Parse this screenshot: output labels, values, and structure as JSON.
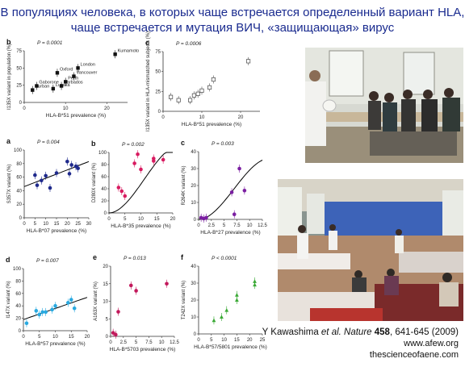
{
  "title_lines": [
    "В популяциях человека, в которых чаще встречается определенный вариант HLA,",
    "чаще встречается и мутация ВИЧ, «защищающая» вирус"
  ],
  "citation": {
    "author": "Y Kawashima ",
    "journal": "et al. Nature",
    "volume": " 458",
    "pages": ", 641-645 (2009)",
    "site1": "www.afew.org",
    "site2": "thescienceofaene.com"
  },
  "colors": {
    "title": "#1a2b8f",
    "a": "#1f2a8c",
    "b": "#d81b60",
    "c": "#7b1fa2",
    "d": "#29a9e0",
    "e": "#c2185b",
    "f": "#3aa935",
    "fit": "#000000"
  },
  "chart_data": [
    {
      "panel": "b",
      "type": "scatter",
      "ptext": "P = 0.0001",
      "xlabel": "HLA-B*51 prevalence (%)",
      "ylabel": "I135X variant in population (%)",
      "xlim": [
        0,
        25
      ],
      "ylim": [
        0,
        75
      ],
      "xticks": [
        0,
        10,
        20
      ],
      "yticks": [
        0,
        25,
        50,
        75
      ],
      "marker": "square-filled",
      "points": [
        {
          "x": 2,
          "y": 18,
          "label": "Durban"
        },
        {
          "x": 3,
          "y": 24,
          "label": "Gaborone"
        },
        {
          "x": 7,
          "y": 20,
          "label": "Lusaka"
        },
        {
          "x": 8,
          "y": 43,
          "label": "Oxford"
        },
        {
          "x": 9,
          "y": 24,
          "label": "Barbados"
        },
        {
          "x": 10,
          "y": 30,
          "label": "Perth"
        },
        {
          "x": 12,
          "y": 38,
          "label": "Vancouver"
        },
        {
          "x": 13,
          "y": 50,
          "label": "London"
        },
        {
          "x": 22,
          "y": 70,
          "label": "Kumamoto"
        }
      ]
    },
    {
      "panel": "c",
      "type": "scatter",
      "ptext": "P = 0.0006",
      "xlabel": "HLA-B*51 prevalence (%)",
      "ylabel": "I135X variant in HLA-mismatched subjects (%)",
      "xlim": [
        0,
        25
      ],
      "ylim": [
        0,
        75
      ],
      "xticks": [
        0,
        10,
        20
      ],
      "yticks": [
        0,
        25,
        50,
        75
      ],
      "marker": "square-open",
      "points": [
        {
          "x": 2,
          "y": 18
        },
        {
          "x": 4,
          "y": 14
        },
        {
          "x": 7,
          "y": 14
        },
        {
          "x": 8,
          "y": 20
        },
        {
          "x": 9,
          "y": 22
        },
        {
          "x": 10,
          "y": 26
        },
        {
          "x": 12,
          "y": 30
        },
        {
          "x": 13,
          "y": 40
        },
        {
          "x": 22,
          "y": 63
        }
      ]
    },
    {
      "panel": "a",
      "type": "scatter",
      "ptext": "P = 0.004",
      "xlabel": "HLA-B*07 prevalence (%)",
      "ylabel": "S357X variant (%)",
      "xlim": [
        0,
        30
      ],
      "ylim": [
        0,
        100
      ],
      "xticks": [
        0,
        5,
        10,
        15,
        20,
        25,
        30
      ],
      "yticks": [
        0,
        20,
        40,
        60,
        80,
        100
      ],
      "fit": "line",
      "points": [
        {
          "x": 5,
          "y": 63
        },
        {
          "x": 6,
          "y": 48
        },
        {
          "x": 8,
          "y": 55
        },
        {
          "x": 10,
          "y": 62
        },
        {
          "x": 12,
          "y": 44
        },
        {
          "x": 15,
          "y": 66
        },
        {
          "x": 20,
          "y": 83
        },
        {
          "x": 21,
          "y": 65
        },
        {
          "x": 22,
          "y": 78
        },
        {
          "x": 24,
          "y": 76
        },
        {
          "x": 25,
          "y": 73
        }
      ]
    },
    {
      "panel": "b",
      "type": "scatter",
      "ptext": "P = 0.002",
      "xlabel": "HLA-B*35 prevalence (%)",
      "ylabel": "D280X variant (%)",
      "xlim": [
        0,
        20
      ],
      "ylim": [
        0,
        100
      ],
      "xticks": [
        0,
        5,
        10,
        15,
        20
      ],
      "yticks": [
        0,
        20,
        40,
        60,
        80,
        100
      ],
      "fit": "curve",
      "points": [
        {
          "x": 3,
          "y": 42
        },
        {
          "x": 4,
          "y": 36
        },
        {
          "x": 5,
          "y": 28
        },
        {
          "x": 8,
          "y": 82
        },
        {
          "x": 9,
          "y": 97
        },
        {
          "x": 10,
          "y": 72
        },
        {
          "x": 14,
          "y": 90
        },
        {
          "x": 14,
          "y": 86
        },
        {
          "x": 17,
          "y": 88
        }
      ]
    },
    {
      "panel": "c",
      "type": "scatter",
      "ptext": "P = 0.003",
      "xlabel": "HLA-B*27 prevalence (%)",
      "ylabel": "R264K variant (%)",
      "xlim": [
        0,
        12.5
      ],
      "ylim": [
        0,
        40
      ],
      "xticks": [
        0,
        2.5,
        5,
        7.5,
        10,
        12.5
      ],
      "yticks": [
        0,
        10,
        20,
        30,
        40
      ],
      "fit": "curve",
      "points": [
        {
          "x": 0.5,
          "y": 1
        },
        {
          "x": 1,
          "y": 0.5
        },
        {
          "x": 1.5,
          "y": 1
        },
        {
          "x": 6.5,
          "y": 16
        },
        {
          "x": 7,
          "y": 3
        },
        {
          "x": 8,
          "y": 30
        },
        {
          "x": 9,
          "y": 17
        }
      ]
    },
    {
      "panel": "d",
      "type": "scatter",
      "ptext": "P = 0.007",
      "xlabel": "HLA-B*57 prevalence (%)",
      "ylabel": "I147X variant (%)",
      "xlim": [
        0,
        20
      ],
      "ylim": [
        0,
        100
      ],
      "xticks": [
        0,
        5,
        10,
        15,
        20
      ],
      "yticks": [
        0,
        20,
        40,
        60,
        80,
        100
      ],
      "fit": "line",
      "points": [
        {
          "x": 1,
          "y": 12
        },
        {
          "x": 4,
          "y": 32
        },
        {
          "x": 5,
          "y": 26
        },
        {
          "x": 6,
          "y": 30
        },
        {
          "x": 7,
          "y": 30
        },
        {
          "x": 9,
          "y": 34
        },
        {
          "x": 10,
          "y": 40
        },
        {
          "x": 14,
          "y": 45
        },
        {
          "x": 15,
          "y": 50
        },
        {
          "x": 16,
          "y": 36
        }
      ]
    },
    {
      "panel": "e",
      "type": "scatter",
      "ptext": "P = 0.013",
      "xlabel": "HLA-B*5703 prevalence (%)",
      "ylabel": "A163X variant (%)",
      "xlim": [
        0,
        12.5
      ],
      "ylim": [
        0,
        20
      ],
      "xticks": [
        0,
        2.5,
        5,
        7.5,
        10,
        12.5
      ],
      "yticks": [
        0,
        5,
        10,
        15,
        20
      ],
      "points": [
        {
          "x": 0.5,
          "y": 1
        },
        {
          "x": 1,
          "y": 0.5
        },
        {
          "x": 1.5,
          "y": 7
        },
        {
          "x": 4,
          "y": 14.5
        },
        {
          "x": 5,
          "y": 13
        },
        {
          "x": 11,
          "y": 15
        }
      ]
    },
    {
      "panel": "f",
      "type": "scatter",
      "ptext": "P < 0.0001",
      "xlabel": "HLA-B*57/5801 prevalence (%)",
      "ylabel": "T242X variant (%)",
      "xlim": [
        0,
        25
      ],
      "ylim": [
        0,
        40
      ],
      "xticks": [
        0,
        5,
        10,
        15,
        20,
        25
      ],
      "yticks": [
        0,
        10,
        20,
        30,
        40
      ],
      "marker": "triangle",
      "points": [
        {
          "x": 6,
          "y": 8
        },
        {
          "x": 9,
          "y": 10
        },
        {
          "x": 11,
          "y": 14
        },
        {
          "x": 15,
          "y": 20
        },
        {
          "x": 15,
          "y": 23
        },
        {
          "x": 22,
          "y": 31
        },
        {
          "x": 22,
          "y": 29
        }
      ]
    }
  ]
}
